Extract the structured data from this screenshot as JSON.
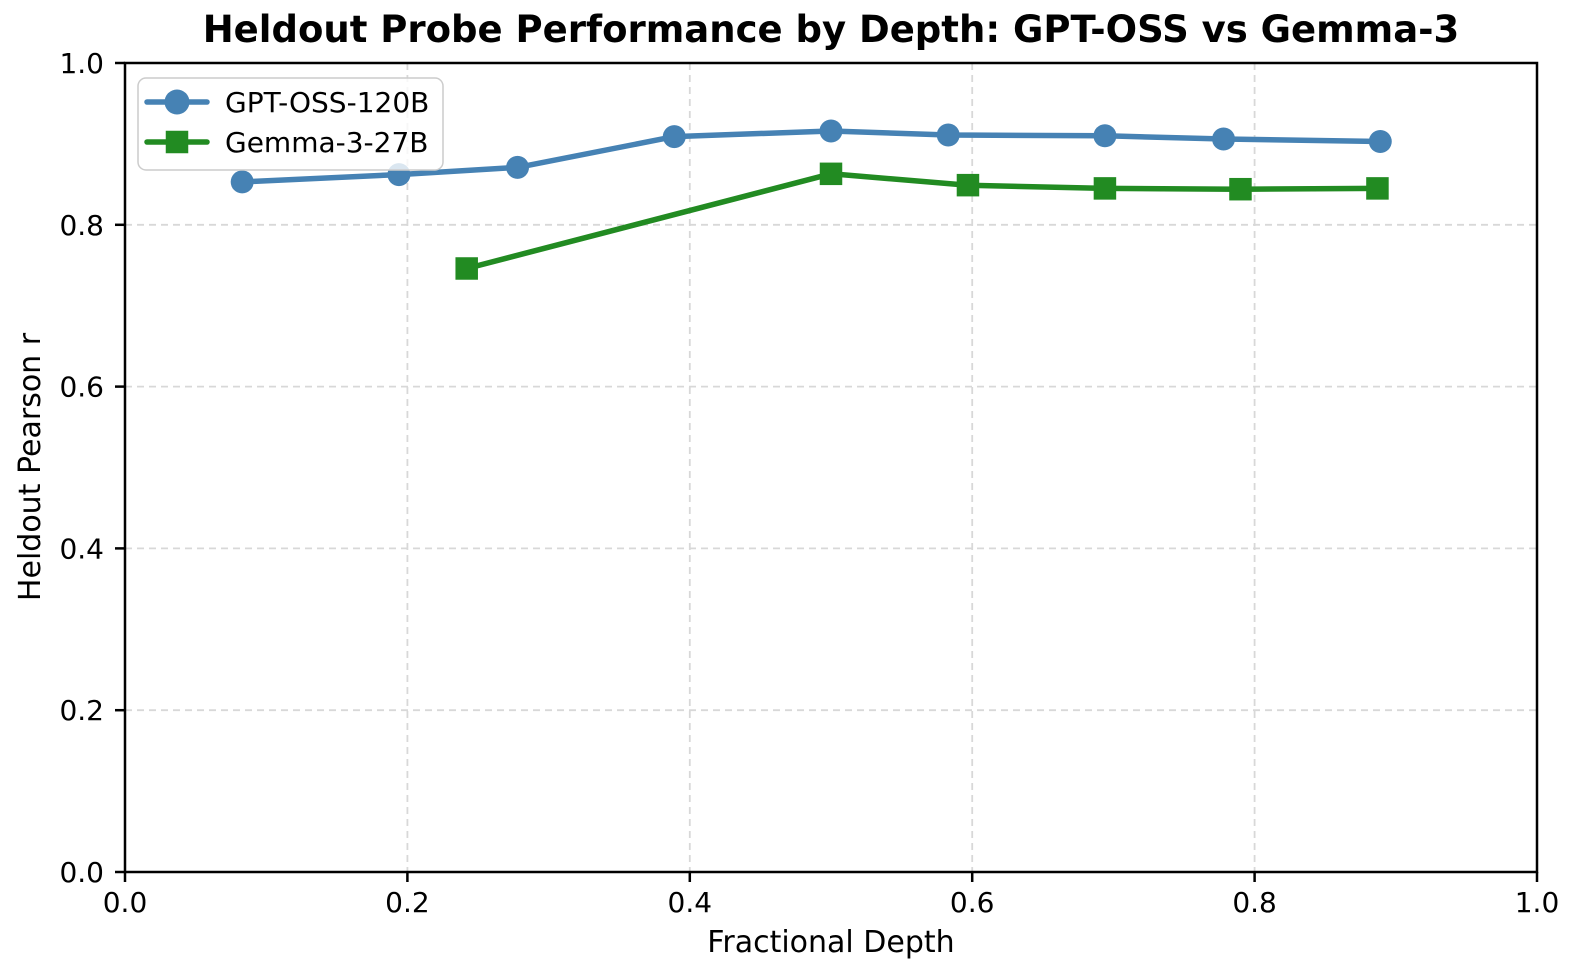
{
  "figure": {
    "background_color": "#ffffff",
    "grid_color": "#d8d8d8",
    "spine_color": "#000000",
    "text_color": "#000000"
  },
  "chart_data": {
    "type": "line",
    "title": "Heldout Probe Performance by Depth: GPT-OSS vs Gemma-3",
    "xlabel": "Fractional Depth",
    "ylabel": "Heldout Pearson r",
    "xlim": [
      0.0,
      1.0
    ],
    "ylim": [
      0.0,
      1.0
    ],
    "xticks": [
      0.0,
      0.2,
      0.4,
      0.6,
      0.8,
      1.0
    ],
    "yticks": [
      0.0,
      0.2,
      0.4,
      0.6,
      0.8,
      1.0
    ],
    "xtick_labels": [
      "0.0",
      "0.2",
      "0.4",
      "0.6",
      "0.8",
      "1.0"
    ],
    "ytick_labels": [
      "0.0",
      "0.2",
      "0.4",
      "0.6",
      "0.8",
      "1.0"
    ],
    "grid": true,
    "grid_style": "dashed",
    "legend_position": "upper-left",
    "series": [
      {
        "name": "GPT-OSS-120B",
        "color": "#4682B4",
        "marker": "circle",
        "x": [
          0.083,
          0.194,
          0.278,
          0.389,
          0.5,
          0.583,
          0.694,
          0.778,
          0.889
        ],
        "y": [
          0.853,
          0.862,
          0.871,
          0.909,
          0.916,
          0.911,
          0.91,
          0.906,
          0.903
        ]
      },
      {
        "name": "Gemma-3-27B",
        "color": "#228B22",
        "marker": "square",
        "x": [
          0.242,
          0.5,
          0.597,
          0.694,
          0.79,
          0.887
        ],
        "y": [
          0.746,
          0.863,
          0.849,
          0.845,
          0.844,
          0.845
        ]
      }
    ]
  }
}
